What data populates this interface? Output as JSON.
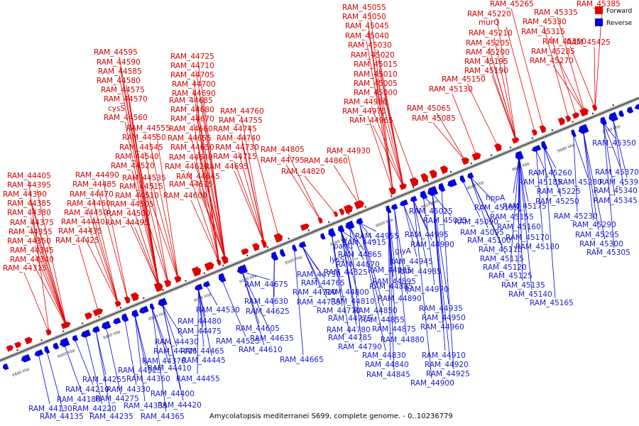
{
  "caption": "Amycolatopsis mediterranei S699, complete genome. - 0..10236779",
  "legend": [
    {
      "label": "Forward",
      "color": "#e00000"
    },
    {
      "label": "Reverse",
      "color": "#0000e0"
    }
  ],
  "colors": {
    "forward": "#e00000",
    "reverse": "#0000e0",
    "forward_label": "#d40000",
    "reverse_label": "#1a1acc",
    "backbone": "#808080"
  },
  "kbp_ticks": [
    "9440 kbp",
    "9460 kbp",
    "9480 kbp",
    "9500 kbp",
    "9520 kbp",
    "9540 kbp",
    "9560 kbp",
    "9580 kbp",
    "9600 kbp",
    "9620 kbp",
    "9640 kbp",
    "9660 kbp",
    "9680 kbp",
    "9700 kbp"
  ],
  "forward_labels": [
    "RAM_44315",
    "RAM_44340",
    "RAM_44345",
    "RAM_44350",
    "RAM_44355",
    "RAM_44375",
    "RAM_44380",
    "RAM_44385",
    "RAM_44390",
    "RAM_44395",
    "RAM_44405",
    "RAM_44425",
    "RAM_44435",
    "RAM_44440",
    "RAM_44450",
    "RAM_44460",
    "RAM_44470",
    "RAM_44485",
    "RAM_44490",
    "RAM_44495",
    "RAM_44500",
    "RAM_44505",
    "RAM_44510",
    "RAM_44515",
    "RAM_44535",
    "RAM_44520",
    "RAM_44540",
    "RAM_44545",
    "RAM_44550",
    "RAM_44555",
    "RAM_44560",
    "cysS",
    "RAM_44570",
    "RAM_44575",
    "RAM_44580",
    "RAM_44585",
    "RAM_44590",
    "RAM_44595",
    "RAM_44600",
    "RAM_44615",
    "RAM_44645",
    "RAM_44620",
    "RAM_44640",
    "RAM_44650",
    "RAM_44655",
    "RAM_44660",
    "RAM_44670",
    "RAM_44680",
    "RAM_44685",
    "RAM_44690",
    "RAM_44700",
    "RAM_44705",
    "RAM_44710",
    "RAM_44725",
    "RAM_44695",
    "RAM_44715",
    "RAM_44730",
    "RAM_44740",
    "RAM_44745",
    "RAM_44755",
    "RAM_44760",
    "RAM_44820",
    "RAM_44795",
    "RAM_44805",
    "RAM_44860",
    "RAM_44930",
    "RAM_44965",
    "RAM_44975",
    "RAM_44980",
    "RAM_45000",
    "RAM_45005",
    "RAM_45010",
    "RAM_45015",
    "RAM_45020",
    "RAM_45030",
    "RAM_45040",
    "RAM_45045",
    "RAM_45050",
    "RAM_45055",
    "RAM_45065",
    "RAM_45085",
    "RAM_45130",
    "RAM_45150",
    "RAM_45190",
    "RAM_45195",
    "RAM_45200",
    "RAM_45205",
    "RAM_45210",
    "murQ",
    "RAM_45220",
    "RAM_45265",
    "RAM_45270",
    "RAM_45285",
    "RAM_45310",
    "RAM_45315",
    "RAM_45330",
    "RAM_45335",
    "RAM_45385",
    "RAM_45425"
  ],
  "reverse_labels": [
    "RAM_44130",
    "RAM_44135",
    "RAM_44180",
    "RAM_44210",
    "RAM_44220",
    "RAM_44235",
    "RAM_44255",
    "RAM_44275",
    "RAM_44325",
    "RAM_44330",
    "RAM_44335",
    "RAM_44360",
    "RAM_44365",
    "RAM_44370",
    "RAM_44400",
    "RAM_44410",
    "RAM_44415",
    "RAM_44420",
    "RAM_44430",
    "RAM_44445",
    "RAM_44455",
    "RAM_44465",
    "RAM_44475",
    "RAM_44480",
    "RAM_44525",
    "RAM_44530",
    "RAM_44605",
    "RAM_44610",
    "RAM_44625",
    "RAM_44630",
    "RAM_44635",
    "RAM_44665",
    "RAM_44675",
    "RAM_44720",
    "RAM_44735",
    "RAM_44750",
    "RAM_44765",
    "RAM_44770",
    "RAM_44775",
    "RAM_44780",
    "RAM_44785",
    "RAM_44790",
    "RAM_44800",
    "RAM_44810",
    "RAM_44825",
    "lysS",
    "panC",
    "RAM_44865",
    "RAM_44870",
    "RAM_44915",
    "RAM_44955",
    "RAM_44830",
    "RAM_44840",
    "RAM_44845",
    "RAM_44850",
    "RAM_44855",
    "RAM_44875",
    "RAM_44880",
    "RAM_44885",
    "RAM_44890",
    "RAM_44895",
    "RAM_44905",
    "glyA",
    "RAM_44945",
    "RAM_44985",
    "RAM_44990",
    "RAM_44995",
    "RAM_45025",
    "RAM_45035",
    "RAM_44970",
    "RAM_44900",
    "RAM_44910",
    "RAM_44920",
    "RAM_44925",
    "RAM_44935",
    "RAM_44950",
    "RAM_44960",
    "RAM_45090",
    "RAM_45095",
    "RAM_45100",
    "RAM_45105",
    "RAM_45110",
    "RAM_45115",
    "RAM_45120",
    "RAM_45125",
    "RAM_45135",
    "RAM_45140",
    "RAM_45165",
    "hppA",
    "RAM_45155",
    "RAM_45160",
    "RAM_45170",
    "RAM_45175",
    "RAM_45180",
    "RAM_45185",
    "RAM_45225",
    "RAM_45230",
    "RAM_45250",
    "RAM_45260",
    "RAM_45280",
    "RAM_45290",
    "RAM_45295",
    "RAM_45300",
    "RAM_45305",
    "RAM_45340",
    "RAM_45345",
    "RAM_45350",
    "RAM_45370",
    "RAM_45390"
  ]
}
